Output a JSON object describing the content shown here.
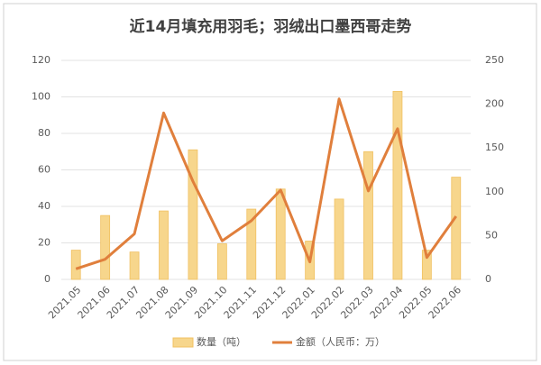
{
  "chart_data": {
    "type": "combo",
    "title": "近14月填充用羽毛；羽绒出口墨西哥走势",
    "categories": [
      "2021.05",
      "2021.06",
      "2021.07",
      "2021.08",
      "2021.09",
      "2021.10",
      "2021.11",
      "2021.12",
      "2022.01",
      "2022.02",
      "2022.03",
      "2022.04",
      "2022.05",
      "2022.06"
    ],
    "series": [
      {
        "name": "数量（吨）",
        "type": "bar",
        "color": "#f7d68c",
        "values": [
          16,
          35,
          15,
          37.5,
          71,
          19.5,
          38.5,
          49.5,
          21,
          44,
          70,
          103,
          16,
          56
        ]
      },
      {
        "name": "金额（人民币：万）",
        "type": "line",
        "axis": "y2",
        "color": "#e07f3c",
        "values": [
          12,
          23,
          52,
          190,
          112,
          44,
          67,
          102,
          20,
          206,
          101,
          172,
          25,
          72
        ]
      }
    ],
    "ylim": [
      0,
      120
    ],
    "yticks": [
      0,
      20,
      40,
      60,
      80,
      100,
      120
    ],
    "y2lim": [
      0,
      250
    ],
    "y2ticks": [
      0,
      50,
      100,
      150,
      200,
      250
    ],
    "grid": true,
    "legend": "bottom"
  }
}
